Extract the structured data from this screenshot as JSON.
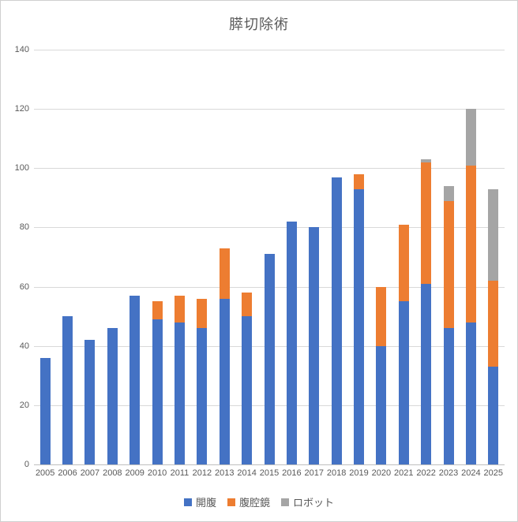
{
  "chart_data": {
    "type": "bar",
    "stacked": true,
    "title": "膵切除術",
    "categories": [
      "2005",
      "2006",
      "2007",
      "2008",
      "2009",
      "2010",
      "2011",
      "2012",
      "2013",
      "2014",
      "2015",
      "2016",
      "2017",
      "2018",
      "2019",
      "2020",
      "2021",
      "2022",
      "2023",
      "2024",
      "2025"
    ],
    "series": [
      {
        "name": "開腹",
        "color": "#4472C4",
        "values": [
          36,
          50,
          42,
          46,
          57,
          49,
          48,
          46,
          56,
          50,
          71,
          82,
          80,
          97,
          93,
          40,
          55,
          61,
          46,
          48,
          33
        ]
      },
      {
        "name": "腹腔鏡",
        "color": "#ED7D31",
        "values": [
          0,
          0,
          0,
          0,
          0,
          6,
          9,
          10,
          17,
          8,
          0,
          0,
          0,
          0,
          5,
          20,
          26,
          41,
          43,
          53,
          29
        ]
      },
      {
        "name": "ロボット",
        "color": "#A5A5A5",
        "values": [
          0,
          0,
          0,
          0,
          0,
          0,
          0,
          0,
          0,
          0,
          0,
          0,
          0,
          0,
          0,
          0,
          0,
          1,
          5,
          19,
          31
        ]
      }
    ],
    "xlabel": "",
    "ylabel": "",
    "ylim": [
      0,
      140
    ],
    "ytick_interval": 20,
    "grid": true,
    "legend_position": "bottom"
  },
  "colors": {
    "text": "#595959",
    "gridline": "#d9d9d9",
    "axis_line": "#bfbfbf",
    "background": "#ffffff"
  }
}
